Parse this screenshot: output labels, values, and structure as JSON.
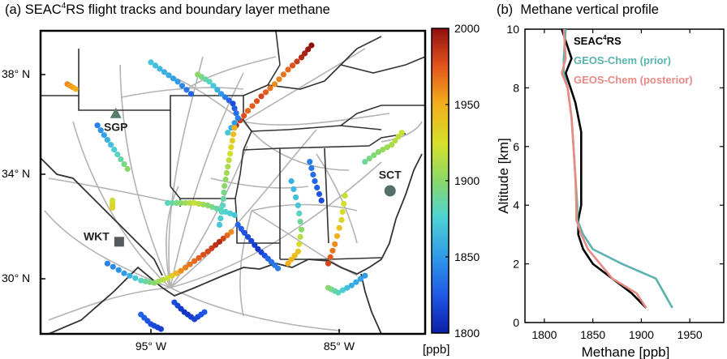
{
  "panel_a": {
    "title_prefix": "(a) SEAC",
    "title_sup": "4",
    "title_suffix": "RS flight tracks and boundary layer methane",
    "lat_ticks": [
      "38° N",
      "34° N",
      "30° N"
    ],
    "lon_ticks": [
      "95° W",
      "85° W"
    ],
    "colorbar": {
      "ticks": [
        "2000",
        "1950",
        "1900",
        "1850",
        "1800"
      ],
      "unit": "[ppb]",
      "min": 1800,
      "max": 2000
    },
    "sites": [
      {
        "name": "SGP",
        "lon": -97.5,
        "lat": 36.6,
        "marker": "triangle"
      },
      {
        "name": "WKT",
        "lon": -97.3,
        "lat": 31.3,
        "marker": "square"
      },
      {
        "name": "SCT",
        "lon": -81.1,
        "lat": 33.4,
        "marker": "circle"
      }
    ]
  },
  "panel_b": {
    "title": "(b)  Methane vertical profile",
    "xlabel": "Methane [ppb]",
    "ylabel": "Altitude [km]",
    "x_ticks": [
      "1800",
      "1850",
      "1900",
      "1950"
    ],
    "y_ticks": [
      "0",
      "2",
      "4",
      "6",
      "8",
      "10"
    ],
    "legend": [
      {
        "label_main": "SEAC",
        "label_sup": "4",
        "label_tail": "RS",
        "color": "#000000"
      },
      {
        "label_main": "GEOS-Chem (prior)",
        "label_sup": "",
        "label_tail": "",
        "color": "#5bb3ad"
      },
      {
        "label_main": "GEOS-Chem (posterior)",
        "label_sup": "",
        "label_tail": "",
        "color": "#e88a84"
      }
    ]
  },
  "chart_data": [
    {
      "type": "scatter",
      "title": "(a) SEAC4RS flight tracks and boundary layer methane",
      "colorbar_range": [
        1800,
        2000
      ],
      "colorbar_unit": "[ppb]",
      "xlim": [
        -102,
        -79
      ],
      "ylim": [
        27.5,
        40
      ],
      "tracks": [
        {
          "points": [
            [
              -98.0,
              30.4,
              1840
            ],
            [
              -97.0,
              30.0,
              1850
            ],
            [
              -96.0,
              29.7,
              1880
            ],
            [
              -95.2,
              29.6,
              1900
            ],
            [
              -94.4,
              29.8,
              1920
            ],
            [
              -93.6,
              30.1,
              1960
            ],
            [
              -92.8,
              30.5,
              1970
            ],
            [
              -92.0,
              30.9,
              1980
            ],
            [
              -91.3,
              31.3,
              1990
            ],
            [
              -90.6,
              31.7,
              1960
            ]
          ]
        },
        {
          "points": [
            [
              -90.3,
              36.1,
              1990
            ],
            [
              -89.6,
              36.7,
              1970
            ],
            [
              -88.8,
              37.3,
              1980
            ],
            [
              -88.0,
              37.8,
              1960
            ],
            [
              -87.2,
              38.4,
              1970
            ],
            [
              -86.4,
              38.9,
              1990
            ],
            [
              -85.8,
              39.4,
              2000
            ]
          ]
        },
        {
          "points": [
            [
              -92.6,
              38.2,
              1900
            ],
            [
              -91.9,
              37.9,
              1880
            ],
            [
              -91.2,
              37.4,
              1850
            ],
            [
              -90.5,
              37.0,
              1820
            ],
            [
              -90.2,
              36.4,
              1840
            ],
            [
              -90.8,
              35.8,
              1870
            ]
          ]
        },
        {
          "points": [
            [
              -90.4,
              36.0,
              1950
            ],
            [
              -90.6,
              35.2,
              1930
            ],
            [
              -90.8,
              34.4,
              1910
            ],
            [
              -91.0,
              33.6,
              1900
            ],
            [
              -91.1,
              32.8,
              1880
            ],
            [
              -91.3,
              32.0,
              1870
            ]
          ]
        },
        {
          "points": [
            [
              -94.4,
              32.9,
              1880
            ],
            [
              -93.6,
              32.9,
              1900
            ],
            [
              -92.8,
              32.9,
              1920
            ],
            [
              -92.0,
              32.8,
              1900
            ],
            [
              -91.2,
              32.6,
              1880
            ],
            [
              -90.4,
              32.4,
              1870
            ]
          ]
        },
        {
          "points": [
            [
              -90.2,
              32.0,
              1830
            ],
            [
              -89.6,
              31.5,
              1820
            ],
            [
              -89.0,
              31.0,
              1810
            ],
            [
              -88.4,
              30.6,
              1830
            ],
            [
              -87.8,
              30.2,
              1840
            ]
          ]
        },
        {
          "points": [
            [
              -87.0,
              33.8,
              1860
            ],
            [
              -86.6,
              32.8,
              1870
            ],
            [
              -86.4,
              31.8,
              1900
            ],
            [
              -86.6,
              30.9,
              1940
            ],
            [
              -87.2,
              30.4,
              1950
            ]
          ]
        },
        {
          "points": [
            [
              -83.8,
              33.2,
              1920
            ],
            [
              -84.0,
              32.2,
              1930
            ],
            [
              -84.4,
              31.2,
              1960
            ],
            [
              -84.8,
              30.4,
              1980
            ]
          ]
        },
        {
          "points": [
            [
              -82.6,
              34.6,
              1890
            ],
            [
              -81.8,
              35.0,
              1900
            ],
            [
              -81.0,
              35.3,
              1910
            ],
            [
              -80.4,
              35.8,
              1920
            ]
          ]
        },
        {
          "points": [
            [
              -84.8,
              29.4,
              1900
            ],
            [
              -84.2,
              29.2,
              1880
            ],
            [
              -83.4,
              29.5,
              1860
            ],
            [
              -82.6,
              29.9,
              1850
            ]
          ]
        },
        {
          "points": [
            [
              -85.9,
              34.6,
              1840
            ],
            [
              -85.6,
              33.8,
              1830
            ],
            [
              -85.2,
              33.0,
              1820
            ]
          ]
        },
        {
          "points": [
            [
              -94.0,
              28.8,
              1820
            ],
            [
              -93.4,
              28.4,
              1810
            ],
            [
              -92.8,
              28.1,
              1815
            ],
            [
              -92.2,
              28.4,
              1825
            ]
          ]
        },
        {
          "points": [
            [
              -96.0,
              28.3,
              1830
            ],
            [
              -95.4,
              27.9,
              1820
            ],
            [
              -94.8,
              27.7,
              1815
            ]
          ]
        },
        {
          "points": [
            [
              -98.6,
              36.1,
              1840
            ],
            [
              -98.0,
              35.5,
              1860
            ],
            [
              -97.4,
              34.9,
              1880
            ],
            [
              -96.8,
              34.3,
              1900
            ]
          ]
        },
        {
          "points": [
            [
              -95.4,
              38.7,
              1870
            ],
            [
              -94.6,
              38.3,
              1860
            ],
            [
              -93.8,
              37.9,
              1850
            ],
            [
              -93.0,
              37.4,
              1830
            ]
          ]
        },
        {
          "points": [
            [
              -100.4,
              37.8,
              1960
            ],
            [
              -99.9,
              37.6,
              1950
            ]
          ]
        },
        {
          "points": [
            [
              -97.7,
              33.0,
              1920
            ],
            [
              -97.7,
              32.7,
              1930
            ]
          ]
        }
      ]
    },
    {
      "type": "line",
      "title": "(b)  Methane vertical profile",
      "xlabel": "Methane [ppb]",
      "ylabel": "Altitude [km]",
      "xlim": [
        1780,
        1985
      ],
      "ylim": [
        0,
        10
      ],
      "series": [
        {
          "name": "SEAC4RS",
          "color": "#000000",
          "x": [
            1905,
            1890,
            1870,
            1850,
            1840,
            1835,
            1835,
            1838,
            1838,
            1838,
            1832,
            1822,
            1828,
            1818
          ],
          "y": [
            0.5,
            1.0,
            1.5,
            2.0,
            2.5,
            3.0,
            3.5,
            4.0,
            5.0,
            6.5,
            7.5,
            8.5,
            9.0,
            10.0
          ]
        },
        {
          "name": "GEOS-Chem (prior)",
          "color": "#5bb3ad",
          "x": [
            1932,
            1915,
            1880,
            1850,
            1840,
            1834,
            1834,
            1832,
            1830,
            1828,
            1824,
            1820,
            1820,
            1822
          ],
          "y": [
            0.5,
            1.5,
            2.0,
            2.5,
            3.0,
            3.5,
            4.0,
            5.0,
            6.0,
            7.0,
            8.0,
            8.5,
            9.0,
            10.0
          ]
        },
        {
          "name": "GEOS-Chem (posterior)",
          "color": "#e88a84",
          "x": [
            1905,
            1895,
            1870,
            1845,
            1838,
            1833,
            1833,
            1832,
            1830,
            1828,
            1824,
            1818,
            1822,
            1820
          ],
          "y": [
            0.5,
            1.0,
            1.5,
            2.5,
            3.0,
            3.5,
            4.0,
            5.0,
            6.0,
            7.0,
            8.0,
            8.5,
            9.0,
            10.0
          ]
        }
      ]
    }
  ]
}
